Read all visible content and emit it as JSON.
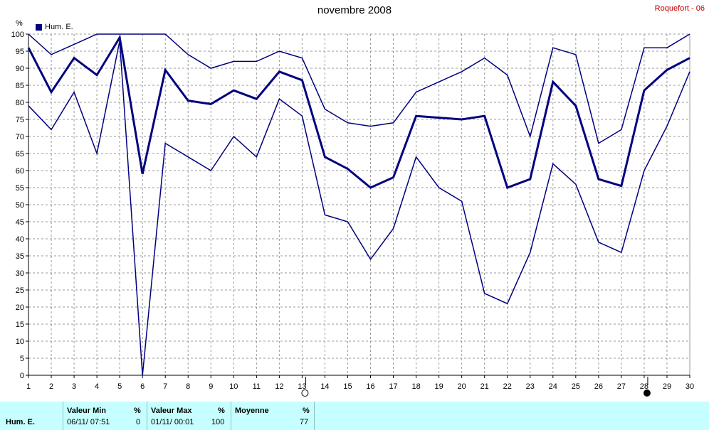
{
  "title": "novembre 2008",
  "station": "Roquefort - 06",
  "ylabel": "%",
  "legend": "Hum. E.",
  "colors": {
    "series": "#000080",
    "grid": "#9a9a9a",
    "footer_bg": "#c6ffff"
  },
  "chart_data": {
    "type": "line",
    "title": "novembre 2008",
    "ylabel": "%",
    "ylim": [
      0,
      100
    ],
    "yticks": [
      0,
      5,
      10,
      15,
      20,
      25,
      30,
      35,
      40,
      45,
      50,
      55,
      60,
      65,
      70,
      75,
      80,
      85,
      90,
      95,
      100
    ],
    "xlim": [
      1,
      30
    ],
    "x": [
      1,
      2,
      3,
      4,
      5,
      6,
      7,
      8,
      9,
      10,
      11,
      12,
      13,
      14,
      15,
      16,
      17,
      18,
      19,
      20,
      21,
      22,
      23,
      24,
      25,
      26,
      27,
      28,
      29,
      30
    ],
    "grid": true,
    "legend": "top-left",
    "markers": {
      "open_circle_day": 13,
      "filled_circle_day": 28
    },
    "series": [
      {
        "name": "Hum. E.",
        "role": "max",
        "values": [
          100,
          94,
          97,
          100,
          100,
          100,
          100,
          94,
          90,
          92,
          92,
          95,
          93,
          78,
          74,
          73,
          74,
          83,
          86,
          89,
          93,
          88,
          70,
          96,
          94,
          68,
          72,
          96,
          96,
          100
        ]
      },
      {
        "name": "Hum. E.",
        "role": "mean",
        "values": [
          96,
          83,
          93,
          88,
          99,
          59,
          89.5,
          80.5,
          79.5,
          83.5,
          81,
          89,
          86.5,
          64,
          60.5,
          55,
          58,
          76,
          75.5,
          75,
          76,
          55,
          57.5,
          86,
          79,
          57.5,
          55.5,
          83.5,
          89.5,
          93
        ]
      },
      {
        "name": "Hum. E.",
        "role": "min",
        "values": [
          79,
          72,
          83,
          65,
          98,
          0,
          68,
          64,
          60,
          70,
          64,
          81,
          76,
          47,
          45,
          34,
          43,
          64,
          55,
          51,
          24,
          21,
          36,
          62,
          56,
          39,
          36,
          60,
          73,
          89
        ]
      }
    ]
  },
  "footer": {
    "row_label": "Hum. E.",
    "min": {
      "header": "Valeur Min",
      "unit": "%",
      "date": "06/11/  07:51",
      "value": "0"
    },
    "max": {
      "header": "Valeur Max",
      "unit": "%",
      "date": "01/11/  00:01",
      "value": "100"
    },
    "mean": {
      "header": "Moyenne",
      "unit": "%",
      "value": "77"
    }
  }
}
